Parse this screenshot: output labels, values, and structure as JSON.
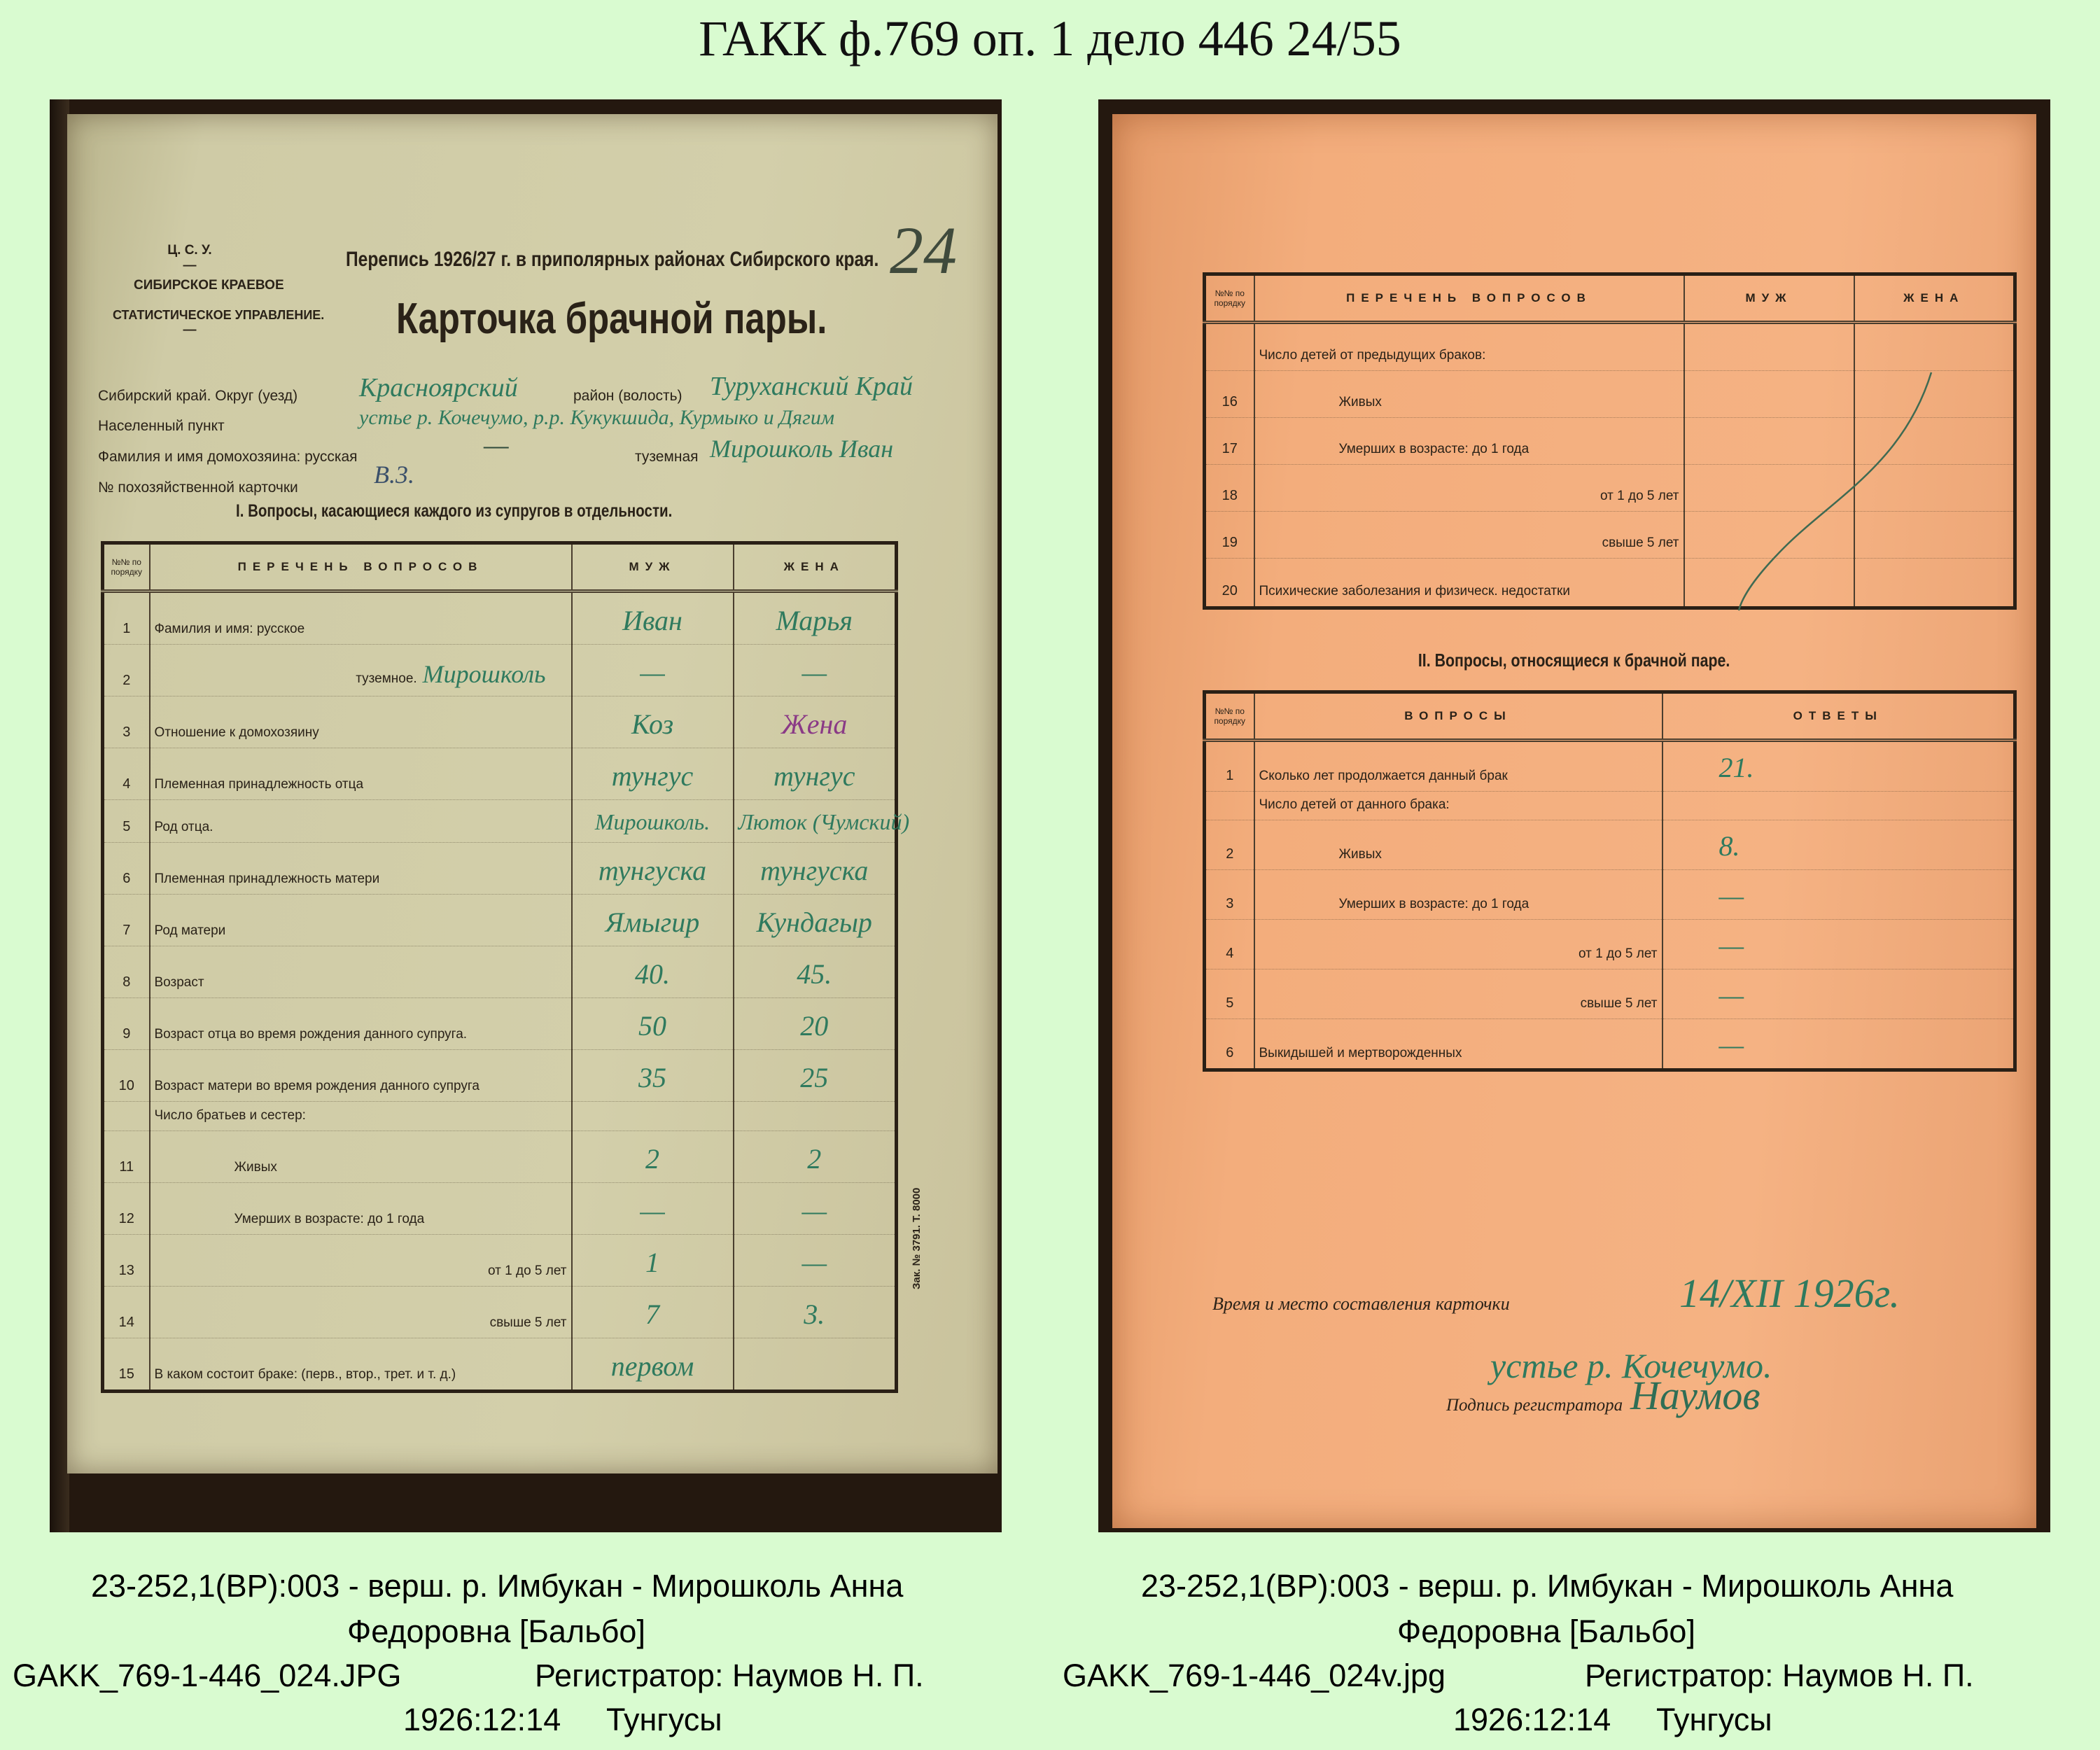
{
  "title": "ГАКК ф.769 оп. 1 дело 446 24/55",
  "left_page": {
    "org": [
      "Ц. С. У.",
      "—",
      "СИБИРСКОЕ КРАЕВОЕ",
      "СТАТИСТИЧЕСКОЕ УПРАВЛЕНИЕ.",
      "—"
    ],
    "census_header": "Перепись 1926/27 г. в приполярных районах Сибирского края.",
    "card_title": "Карточка брачной пары.",
    "sheet_number": "24",
    "fields": {
      "okrug_label": "Сибирский край. Округ (уезд)",
      "okrug_value": "Красноярский",
      "raion_label": "район (волость)",
      "raion_value": "Туруханский Край",
      "settlement_label": "Населенный пункт",
      "settlement_value": "устье р. Кочечумо, р.р. Кукукшида, Курмыко и Дягим",
      "head_label": "Фамилия и имя домохозяина: русская",
      "head_russian_value": "—",
      "head_native_label": "туземная",
      "head_native_value": "Мирошколь Иван",
      "card_no_label": "№ похозяйственной карточки",
      "card_no_value": "В.3."
    },
    "section_heading": "I. Вопросы, касающиеся каждого из супругов в отдельности.",
    "table_headers": {
      "num": "№№ по порядку",
      "questions": "ПЕРЕЧЕНЬ ВОПРОСОВ",
      "husband": "МУЖ",
      "wife": "ЖЕНА"
    },
    "rows": [
      {
        "num": "1",
        "q": "Фамилия и имя: русское",
        "husband": "Иван",
        "wife": "Марья"
      },
      {
        "num": "2",
        "q": "туземное.",
        "inline": "Мирошколь",
        "husband": "—",
        "wife": "—"
      },
      {
        "num": "3",
        "q": "Отношение к домохозяину",
        "husband": "Коз",
        "wife": "Жена"
      },
      {
        "num": "4",
        "q": "Племенная принадлежность отца",
        "husband": "тунгус",
        "wife": "тунгус"
      },
      {
        "num": "5",
        "q": "Род отца.",
        "husband": "Мирошколь.",
        "wife": "Люток (Чумский)"
      },
      {
        "num": "6",
        "q": "Племенная принадлежность матери",
        "husband": "тунгуска",
        "wife": "тунгуска"
      },
      {
        "num": "7",
        "q": "Род матери",
        "husband": "Ямыгир",
        "wife": "Кундагыр"
      },
      {
        "num": "8",
        "q": "Возраст",
        "husband": "40.",
        "wife": "45."
      },
      {
        "num": "9",
        "q": "Возраст отца во время рождения данного супруга.",
        "husband": "50",
        "wife": "20"
      },
      {
        "num": "10",
        "q": "Возраст матери во время рождения данного супруга",
        "husband": "35",
        "wife": "25"
      },
      {
        "num": "",
        "q": "Число братьев и сестер:",
        "husband": "",
        "wife": ""
      },
      {
        "num": "11",
        "q": "Живых",
        "husband": "2",
        "wife": "2"
      },
      {
        "num": "12",
        "q": "Умерших в возрасте: до 1 года",
        "husband": "—",
        "wife": "—"
      },
      {
        "num": "13",
        "q": "от 1 до 5 лет",
        "husband": "1",
        "wife": "—"
      },
      {
        "num": "14",
        "q": "свыше 5 лет",
        "husband": "7",
        "wife": "3."
      },
      {
        "num": "15",
        "q": "В каком состоит браке: (перв., втор., трет. и т. д.)",
        "husband": "первом",
        "wife": ""
      }
    ],
    "print_order": "Зак. № 3791. Т. 8000"
  },
  "right_page": {
    "table1_headers": {
      "num": "№№ по порядку",
      "questions": "ПЕРЕЧЕНЬ ВОПРОСОВ",
      "husband": "МУЖ",
      "wife": "ЖЕНА"
    },
    "table1_rows": [
      {
        "num": "",
        "q": "Число детей от предыдущих браков:"
      },
      {
        "num": "16",
        "q": "Живых"
      },
      {
        "num": "17",
        "q": "Умерших в возрасте: до 1 года"
      },
      {
        "num": "18",
        "q": "от 1 до 5 лет"
      },
      {
        "num": "19",
        "q": "свыше 5 лет"
      },
      {
        "num": "20",
        "q": "Психические заболезания и физическ. недостатки"
      }
    ],
    "section_heading": "II. Вопросы, относящиеся к брачной паре.",
    "table2_headers": {
      "num": "№№ по порядку",
      "questions": "ВОПРОСЫ",
      "answers": "ОТВЕТЫ"
    },
    "table2_rows": [
      {
        "num": "1",
        "q": "Сколько лет продолжается данный брак",
        "a": "21."
      },
      {
        "num": "",
        "q": "Число детей от данного брака:",
        "a": ""
      },
      {
        "num": "2",
        "q": "Живых",
        "a": "8."
      },
      {
        "num": "3",
        "q": "Умерших в возрасте: до 1 года",
        "a": "—"
      },
      {
        "num": "4",
        "q": "от 1 до 5 лет",
        "a": "—"
      },
      {
        "num": "5",
        "q": "свыше 5 лет",
        "a": "—"
      },
      {
        "num": "6",
        "q": "Выкидышей и мертворожденных",
        "a": "—"
      }
    ],
    "time_place_label": "Время и место составления карточки",
    "date_value": "14/XII 1926г.",
    "place_value": "устье р. Кочечумо.",
    "signature_label": "Подпись регистратора",
    "signature": "Наумов"
  },
  "captions": {
    "left": {
      "line1": "23-252,1(ВР):003 - верш. р. Имбукан - Мирошколь Анна",
      "line2": "Федоровна [Бальбо]",
      "file": "GAKK_769-1-446_024.JPG",
      "registrar": "Регистратор: Наумов Н. П.",
      "date": "1926:12:14",
      "people": "Тунгусы"
    },
    "right": {
      "line1": "23-252,1(ВР):003 - верш. р. Имбукан - Мирошколь Анна",
      "line2": "Федоровна [Бальбо]",
      "file": "GAKK_769-1-446_024v.jpg",
      "registrar": "Регистратор: Наумов Н. П.",
      "date": "1926:12:14",
      "people": "Тунгусы"
    }
  },
  "colors": {
    "background": "#d9fbd0",
    "ink_green": "#2f7a5e",
    "ink_purple": "#8a3a86",
    "paper_left": "#cfcba6",
    "paper_right": "#f3ad7c"
  }
}
